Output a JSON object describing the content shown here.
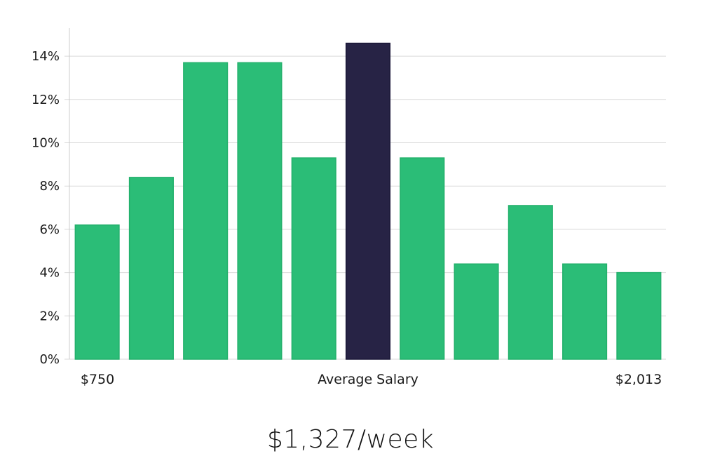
{
  "headline": "$1,327/week",
  "chart_data": {
    "type": "bar",
    "title": "",
    "xlabel": "",
    "ylabel": "",
    "x_labels": {
      "left": "$750",
      "center": "Average Salary",
      "right": "$2,013"
    },
    "values": [
      6.2,
      8.4,
      13.7,
      13.7,
      9.3,
      14.6,
      9.3,
      4.4,
      7.1,
      4.4,
      4.0
    ],
    "highlight_index": 5,
    "ylim": [
      0,
      15.3
    ],
    "yticks": [
      0,
      2,
      4,
      6,
      8,
      10,
      12,
      14
    ],
    "ytick_format": "percent",
    "grid": true,
    "colors": {
      "bar": "#2bbd77",
      "bar_edge": "#22b06b",
      "highlight": "#272345",
      "grid": "#d9d9d9"
    }
  }
}
